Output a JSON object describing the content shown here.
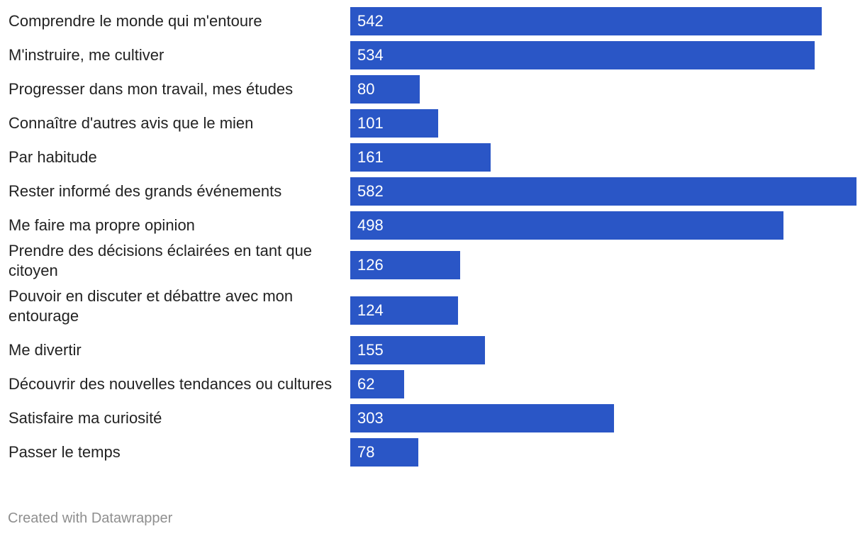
{
  "chart_data": {
    "type": "bar",
    "orientation": "horizontal",
    "categories": [
      "Comprendre le monde qui m'entoure",
      "M'instruire, me cultiver",
      "Progresser dans mon travail, mes études",
      "Connaître d'autres avis que le mien",
      "Par habitude",
      "Rester informé des grands événements",
      "Me faire ma propre opinion",
      "Prendre des décisions éclairées en tant que citoyen",
      "Pouvoir en discuter et débattre avec mon entourage",
      "Me divertir",
      "Découvrir des nouvelles tendances ou cultures",
      "Satisfaire ma curiosité",
      "Passer le temps"
    ],
    "values": [
      542,
      534,
      80,
      101,
      161,
      582,
      498,
      126,
      124,
      155,
      62,
      303,
      78
    ],
    "bar_color": "#2a56c6",
    "value_label_color": "#ffffff",
    "label_color": "#222222",
    "xlim": [
      0,
      582
    ],
    "grid": false
  },
  "footer": {
    "credit": "Created with Datawrapper",
    "color": "#8f8f8f"
  }
}
